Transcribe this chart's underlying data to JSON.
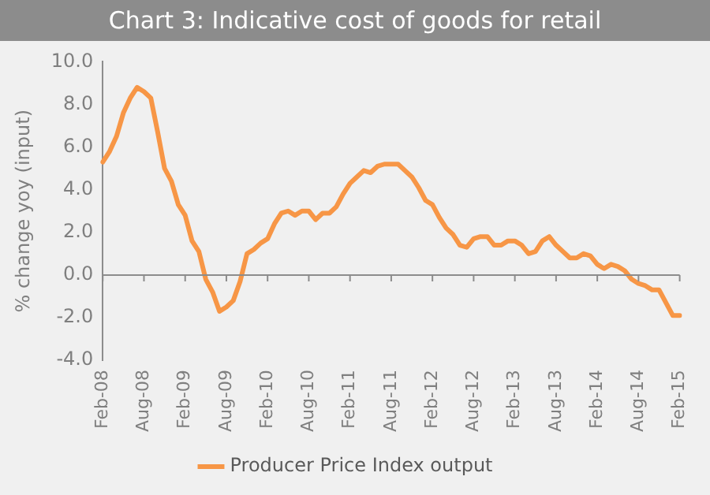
{
  "chart_data": {
    "type": "line",
    "title": "Chart 3: Indicative cost of goods for retail",
    "ylabel": "% change yoy (input)",
    "categories": [
      "Feb-08",
      null,
      null,
      null,
      null,
      null,
      "Aug-08",
      null,
      null,
      null,
      null,
      null,
      "Feb-09",
      null,
      null,
      null,
      null,
      null,
      "Aug-09",
      null,
      null,
      null,
      null,
      null,
      "Feb-10",
      null,
      null,
      null,
      null,
      null,
      "Aug-10",
      null,
      null,
      null,
      null,
      null,
      "Feb-11",
      null,
      null,
      null,
      null,
      null,
      "Aug-11",
      null,
      null,
      null,
      null,
      null,
      "Feb-12",
      null,
      null,
      null,
      null,
      null,
      "Aug-12",
      null,
      null,
      null,
      null,
      null,
      "Feb-13",
      null,
      null,
      null,
      null,
      null,
      "Aug-13",
      null,
      null,
      null,
      null,
      null,
      "Feb-14",
      null,
      null,
      null,
      null,
      null,
      "Aug-14",
      null,
      null,
      null,
      null,
      null,
      "Feb-15"
    ],
    "series": [
      {
        "name": "Producer Price Index output",
        "color": "#f79646",
        "values": [
          5.3,
          5.8,
          6.5,
          7.6,
          8.3,
          8.8,
          8.6,
          8.3,
          6.7,
          5.0,
          4.4,
          3.3,
          2.8,
          1.6,
          1.1,
          -0.2,
          -0.8,
          -1.7,
          -1.5,
          -1.2,
          -0.3,
          1.0,
          1.2,
          1.5,
          1.7,
          2.4,
          2.9,
          3.0,
          2.8,
          3.0,
          3.0,
          2.6,
          2.9,
          2.9,
          3.2,
          3.8,
          4.3,
          4.6,
          4.9,
          4.8,
          5.1,
          5.2,
          5.2,
          5.2,
          4.9,
          4.6,
          4.1,
          3.5,
          3.3,
          2.7,
          2.2,
          1.9,
          1.4,
          1.3,
          1.7,
          1.8,
          1.8,
          1.4,
          1.4,
          1.6,
          1.6,
          1.4,
          1.0,
          1.1,
          1.6,
          1.8,
          1.4,
          1.1,
          0.8,
          0.8,
          1.0,
          0.9,
          0.5,
          0.3,
          0.5,
          0.4,
          0.2,
          -0.2,
          -0.4,
          -0.5,
          -0.7,
          -0.7,
          -1.3,
          -1.9,
          -1.9
        ]
      }
    ],
    "ylim": [
      -4,
      10
    ],
    "yticks": [
      {
        "value": -4,
        "label": "-4.0"
      },
      {
        "value": -2,
        "label": "-2.0"
      },
      {
        "value": 0,
        "label": "0.0"
      },
      {
        "value": 2,
        "label": "2.0"
      },
      {
        "value": 4,
        "label": "4.0"
      },
      {
        "value": 6,
        "label": "6.0"
      },
      {
        "value": 8,
        "label": "8.0"
      },
      {
        "value": 10,
        "label": "10.0"
      }
    ],
    "ref_lines": [
      {
        "axis": "y",
        "value": 0,
        "color": "#8c8c8c",
        "line_style": "solid"
      }
    ],
    "grid": false,
    "legend": "bottom",
    "marker": "none",
    "line_style": "solid"
  }
}
